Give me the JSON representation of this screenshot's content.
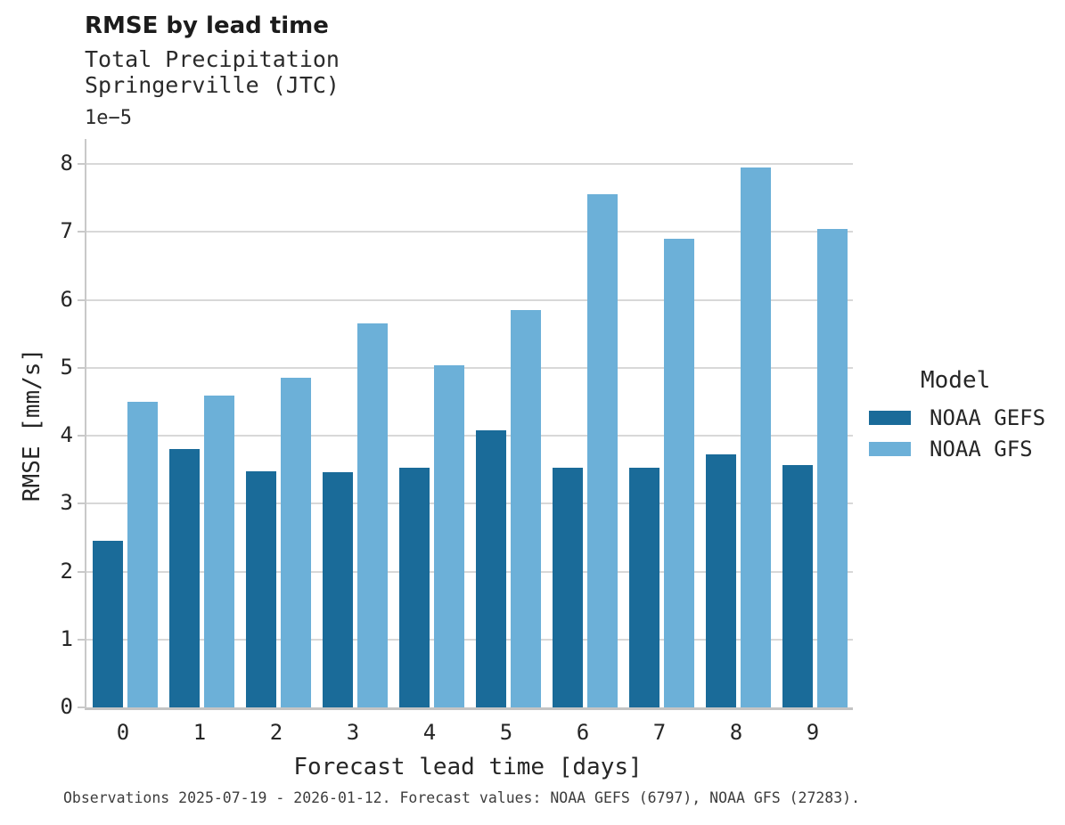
{
  "caption": "Observations 2025-07-19 - 2026-01-12. Forecast values: NOAA GEFS (6797), NOAA GFS (27283).",
  "colors": {
    "gefs_dark_blue": "#1A6B99",
    "gfs_light_blue": "#6CB0D8",
    "gridline_gray": "#d8d8d8",
    "spine_gray": "#c9c9c9"
  },
  "chart_data": {
    "type": "bar",
    "title": "RMSE by lead time",
    "subtitle": [
      "Total Precipitation",
      "Springerville (JTC)"
    ],
    "value_multiplier": "1e−5",
    "xlabel": "Forecast lead time [days]",
    "ylabel": "RMSE [mm/s]",
    "categories": [
      0,
      1,
      2,
      3,
      4,
      5,
      6,
      7,
      8,
      9
    ],
    "series": [
      {
        "name": "NOAA GEFS",
        "color": "#1A6B99",
        "values": [
          2.45,
          3.81,
          3.48,
          3.47,
          3.53,
          4.08,
          3.53,
          3.53,
          3.72,
          3.57
        ]
      },
      {
        "name": "NOAA GFS",
        "color": "#6CB0D8",
        "values": [
          4.5,
          4.59,
          4.86,
          5.65,
          5.04,
          5.85,
          7.56,
          6.9,
          7.95,
          7.05
        ]
      }
    ],
    "units_note": "bar values are in 1e-5 mm/s",
    "yticks": [
      0,
      1,
      2,
      3,
      4,
      5,
      6,
      7,
      8
    ],
    "ylim": [
      0,
      8.37
    ],
    "grid": true,
    "legend_title": "Model",
    "legend_position": "right"
  }
}
